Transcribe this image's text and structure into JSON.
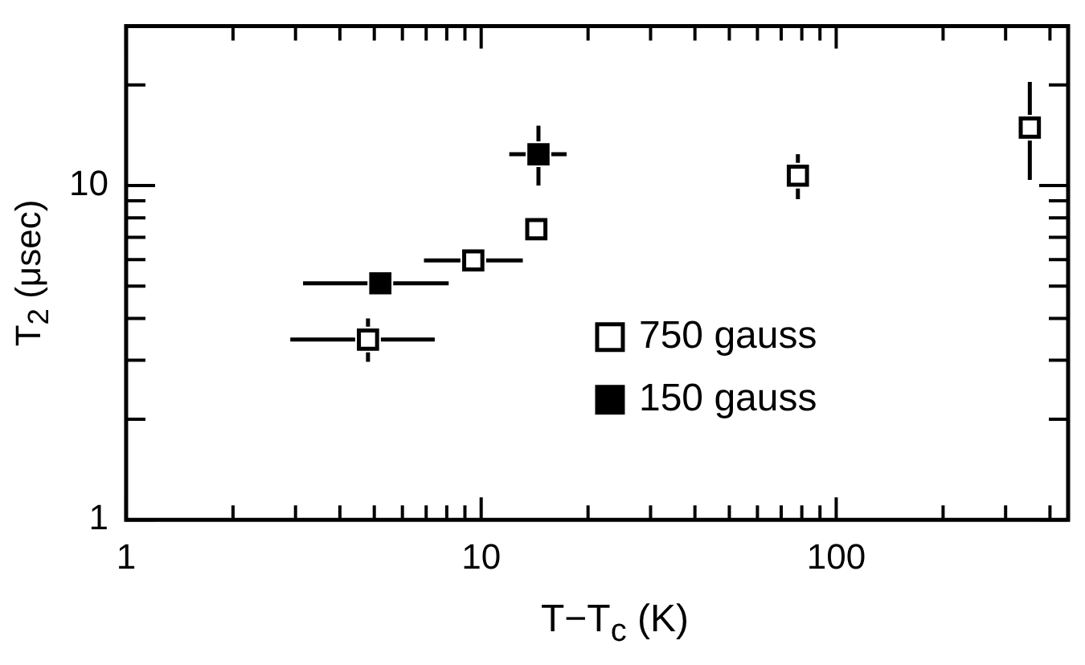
{
  "chart_data": {
    "type": "scatter",
    "xlabel": "T−T$_{c}$ (K)",
    "ylabel": "T$_{2}$ (μsec)",
    "log": "xy",
    "grid": false,
    "legend": "right",
    "marker": "square",
    "xlim": [
      1,
      450
    ],
    "ylim": [
      1,
      30
    ],
    "xticks": [
      1,
      {
        "value": 2,
        "label": null
      },
      {
        "value": 3,
        "label": null
      },
      {
        "value": 4,
        "label": null
      },
      {
        "value": 5,
        "label": null
      },
      {
        "value": 6,
        "label": null
      },
      {
        "value": 7,
        "label": null
      },
      {
        "value": 8,
        "label": null
      },
      {
        "value": 9,
        "label": null
      },
      10,
      {
        "value": 20,
        "label": null
      },
      {
        "value": 30,
        "label": null
      },
      {
        "value": 40,
        "label": null
      },
      {
        "value": 50,
        "label": null
      },
      {
        "value": 60,
        "label": null
      },
      {
        "value": 70,
        "label": null
      },
      {
        "value": 80,
        "label": null
      },
      {
        "value": 90,
        "label": null
      },
      100,
      {
        "value": 200,
        "label": null
      },
      {
        "value": 300,
        "label": null
      },
      {
        "value": 400,
        "label": null
      }
    ],
    "yticks": [
      1,
      {
        "value": 2,
        "label": null
      },
      {
        "value": 3,
        "label": null
      },
      {
        "value": 4,
        "label": null
      },
      {
        "value": 5,
        "label": null
      },
      {
        "value": 6,
        "label": null
      },
      {
        "value": 7,
        "label": null
      },
      {
        "value": 8,
        "label": null
      },
      {
        "value": 9,
        "label": null
      },
      10,
      {
        "value": 20,
        "label": null
      }
    ],
    "series": [
      {
        "name": "750 gauss",
        "color": "#ffffff",
        "x": [
          4.8,
          9.5,
          14.3,
          78,
          351
        ],
        "values": [
          3.46,
          5.97,
          7.4,
          10.7,
          14.9
        ],
        "errors": [
          [
            2.97,
            4.0
          ],
          null,
          null,
          [
            9.1,
            12.4
          ],
          [
            10.4,
            20.4
          ]
        ],
        "xerrors": [
          [
            2.9,
            7.4
          ],
          [
            6.9,
            13.1
          ],
          null,
          null,
          null
        ]
      },
      {
        "name": "150 gauss",
        "color": "#000000",
        "x": [
          5.2,
          14.5
        ],
        "values": [
          5.1,
          12.4
        ],
        "errors": [
          null,
          [
            10,
            15.1
          ]
        ],
        "xerrors": [
          [
            3.15,
            8.1
          ],
          [
            12.0,
            17.4
          ]
        ]
      }
    ]
  }
}
